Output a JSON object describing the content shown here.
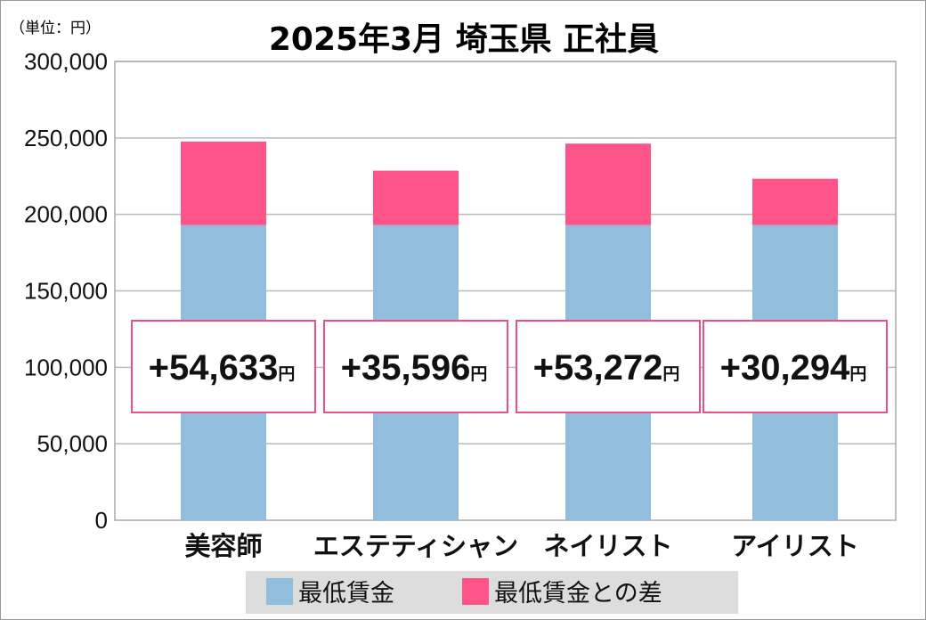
{
  "chart_data": {
    "type": "bar",
    "stacked": true,
    "title": "2025年3月 埼玉県 正社員",
    "unit_label": "（単位：円）",
    "categories": [
      "美容師",
      "エステティシャン",
      "ネイリスト",
      "アイリスト"
    ],
    "series": [
      {
        "name": "最低賃金",
        "values": [
          193000,
          193000,
          193000,
          193000
        ],
        "color": "#92bedd"
      },
      {
        "name": "最低賃金との差",
        "values": [
          54633,
          35596,
          53272,
          30294
        ],
        "color": "#ff548a"
      }
    ],
    "data_labels": [
      "+54,633",
      "+35,596",
      "+53,272",
      "+30,294"
    ],
    "data_label_suffix": "円",
    "ylim": [
      0,
      300000
    ],
    "yticks": [
      0,
      50000,
      100000,
      150000,
      200000,
      250000,
      300000
    ],
    "ytick_labels": [
      "0",
      "50,000",
      "100,000",
      "150,000",
      "200,000",
      "250,000",
      "300,000"
    ],
    "grid": true,
    "legend": "bottom"
  }
}
